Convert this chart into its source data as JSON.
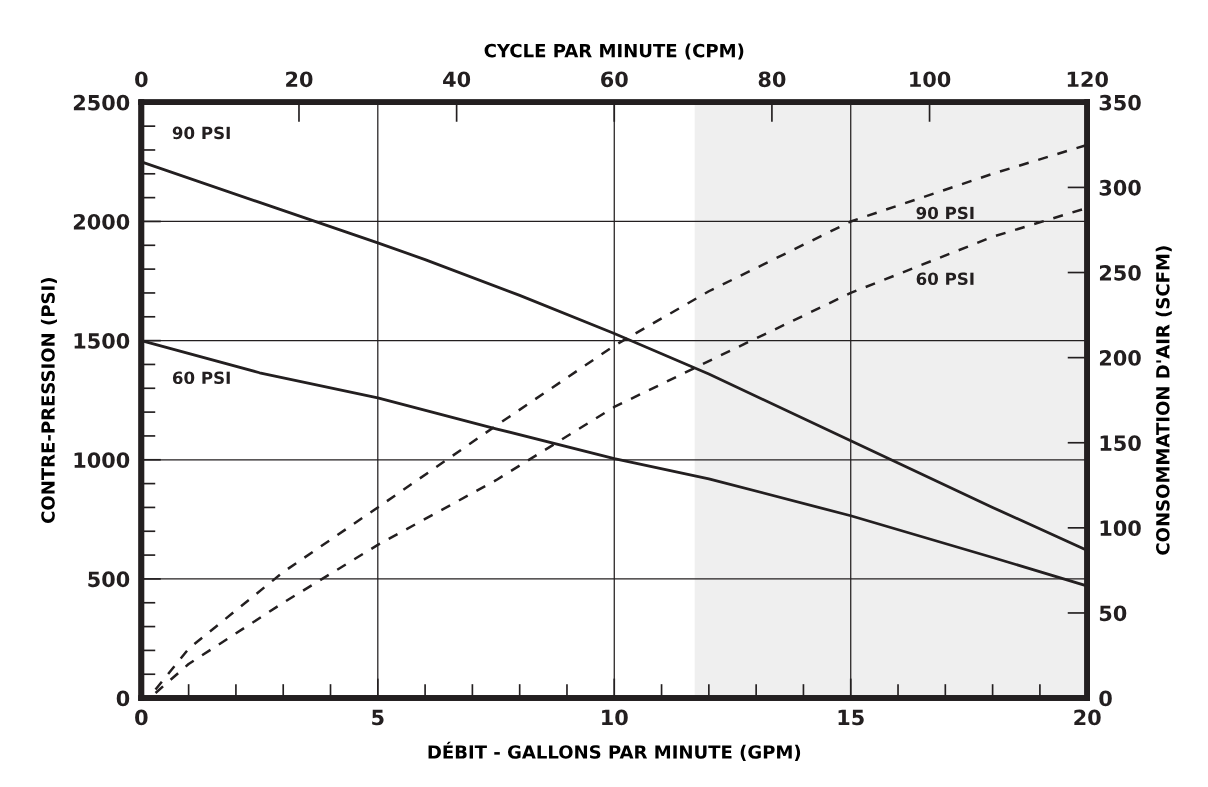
{
  "chart_data": {
    "type": "line",
    "xlabel": "DÉBIT - GALLONS PAR MINUTE (GPM)",
    "ylabel": "CONTRE-PRESSION (PSI)",
    "y2label": "CONSOMMATION D'AIR (SCFM)",
    "x2label": "CYCLE PAR MINUTE (CPM)",
    "xlim": [
      0,
      20
    ],
    "xticks": [
      0,
      {
        "value": 1,
        "label": null
      },
      {
        "value": 2,
        "label": null
      },
      {
        "value": 3,
        "label": null
      },
      {
        "value": 4,
        "label": null
      },
      5,
      {
        "value": 6,
        "label": null
      },
      {
        "value": 7,
        "label": null
      },
      {
        "value": 8,
        "label": null
      },
      {
        "value": 9,
        "label": null
      },
      10,
      {
        "value": 11,
        "label": null
      },
      {
        "value": 12,
        "label": null
      },
      {
        "value": 13,
        "label": null
      },
      {
        "value": 14,
        "label": null
      },
      15,
      {
        "value": 16,
        "label": null
      },
      {
        "value": 17,
        "label": null
      },
      {
        "value": 18,
        "label": null
      },
      {
        "value": 19,
        "label": null
      },
      20
    ],
    "ylim": [
      0,
      2500
    ],
    "yticks": [
      0,
      {
        "value": 100,
        "label": null
      },
      {
        "value": 200,
        "label": null
      },
      {
        "value": 300,
        "label": null
      },
      {
        "value": 400,
        "label": null
      },
      500,
      {
        "value": 600,
        "label": null
      },
      {
        "value": 700,
        "label": null
      },
      {
        "value": 800,
        "label": null
      },
      {
        "value": 900,
        "label": null
      },
      1000,
      {
        "value": 1100,
        "label": null
      },
      {
        "value": 1200,
        "label": null
      },
      {
        "value": 1300,
        "label": null
      },
      {
        "value": 1400,
        "label": null
      },
      1500,
      {
        "value": 1600,
        "label": null
      },
      {
        "value": 1700,
        "label": null
      },
      {
        "value": 1800,
        "label": null
      },
      {
        "value": 1900,
        "label": null
      },
      2000,
      {
        "value": 2100,
        "label": null
      },
      {
        "value": 2200,
        "label": null
      },
      {
        "value": 2300,
        "label": null
      },
      {
        "value": 2400,
        "label": null
      },
      2500
    ],
    "y2lim": [
      0,
      350
    ],
    "y2ticks": [
      0,
      50,
      100,
      150,
      200,
      250,
      300,
      350
    ],
    "x2lim": [
      0,
      120
    ],
    "x2ticks": [
      0,
      20,
      40,
      60,
      80,
      100,
      120
    ],
    "grid": true,
    "legend": false,
    "bands": [
      {
        "axis": "x",
        "from": 11.7,
        "to": 20,
        "color": "#efefef"
      }
    ],
    "series": [
      {
        "name": "90 PSI",
        "color": "#231f20",
        "line_style": "solid",
        "x": [
          0,
          2.5,
          5,
          6,
          8,
          10,
          12,
          15,
          18,
          20
        ],
        "values": [
          2250,
          2080,
          1910,
          1840,
          1690,
          1530,
          1360,
          1080,
          800,
          620
        ]
      },
      {
        "name": "60 PSI",
        "color": "#231f20",
        "line_style": "solid",
        "x": [
          0,
          2.5,
          5,
          7.5,
          10,
          12,
          15,
          18,
          20
        ],
        "values": [
          1500,
          1365,
          1260,
          1130,
          1005,
          920,
          765,
          590,
          470
        ]
      },
      {
        "name": "90 PSI",
        "color": "#231f20",
        "line_style": "dashed",
        "axis": "y2",
        "x": [
          0.3,
          1,
          3,
          5,
          7.5,
          10,
          12,
          15,
          18,
          20
        ],
        "values": [
          5,
          29,
          74,
          112,
          160,
          207,
          239,
          280,
          308,
          325
        ]
      },
      {
        "name": "60 PSI",
        "color": "#231f20",
        "line_style": "dashed",
        "axis": "y2",
        "x": [
          0.3,
          1,
          3,
          5,
          7.5,
          10,
          12,
          15,
          18,
          20
        ],
        "values": [
          3,
          20,
          56,
          90,
          128,
          171,
          198,
          238,
          271,
          288
        ]
      }
    ]
  }
}
